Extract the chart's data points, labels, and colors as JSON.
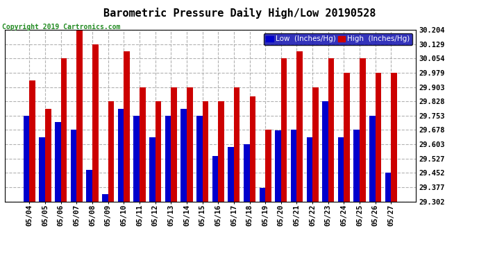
{
  "title": "Barometric Pressure Daily High/Low 20190528",
  "copyright": "Copyright 2019 Cartronics.com",
  "dates": [
    "05/04",
    "05/05",
    "05/06",
    "05/07",
    "05/08",
    "05/09",
    "05/10",
    "05/11",
    "05/12",
    "05/13",
    "05/14",
    "05/15",
    "05/16",
    "05/17",
    "05/18",
    "05/19",
    "05/20",
    "05/21",
    "05/22",
    "05/23",
    "05/24",
    "05/25",
    "05/26",
    "05/27"
  ],
  "low": [
    29.753,
    29.64,
    29.72,
    29.678,
    29.47,
    29.34,
    29.79,
    29.753,
    29.64,
    29.753,
    29.79,
    29.753,
    29.54,
    29.59,
    29.603,
    29.374,
    29.675,
    29.678,
    29.64,
    29.83,
    29.64,
    29.678,
    29.753,
    29.452
  ],
  "high": [
    29.94,
    29.79,
    30.054,
    30.204,
    30.129,
    29.828,
    30.092,
    29.903,
    29.828,
    29.903,
    29.903,
    29.828,
    29.828,
    29.903,
    29.853,
    29.678,
    30.054,
    30.092,
    29.903,
    30.054,
    29.979,
    30.054,
    29.979,
    29.979
  ],
  "low_color": "#0000cc",
  "high_color": "#cc0000",
  "bg_color": "#ffffff",
  "grid_color": "#aaaaaa",
  "ylim_min": 29.302,
  "ylim_max": 30.204,
  "yticks": [
    29.302,
    29.377,
    29.452,
    29.527,
    29.603,
    29.678,
    29.753,
    29.828,
    29.903,
    29.979,
    30.054,
    30.129,
    30.204
  ],
  "title_fontsize": 11,
  "copyright_fontsize": 7,
  "legend_low_label": "Low  (Inches/Hg)",
  "legend_high_label": "High  (Inches/Hg)"
}
